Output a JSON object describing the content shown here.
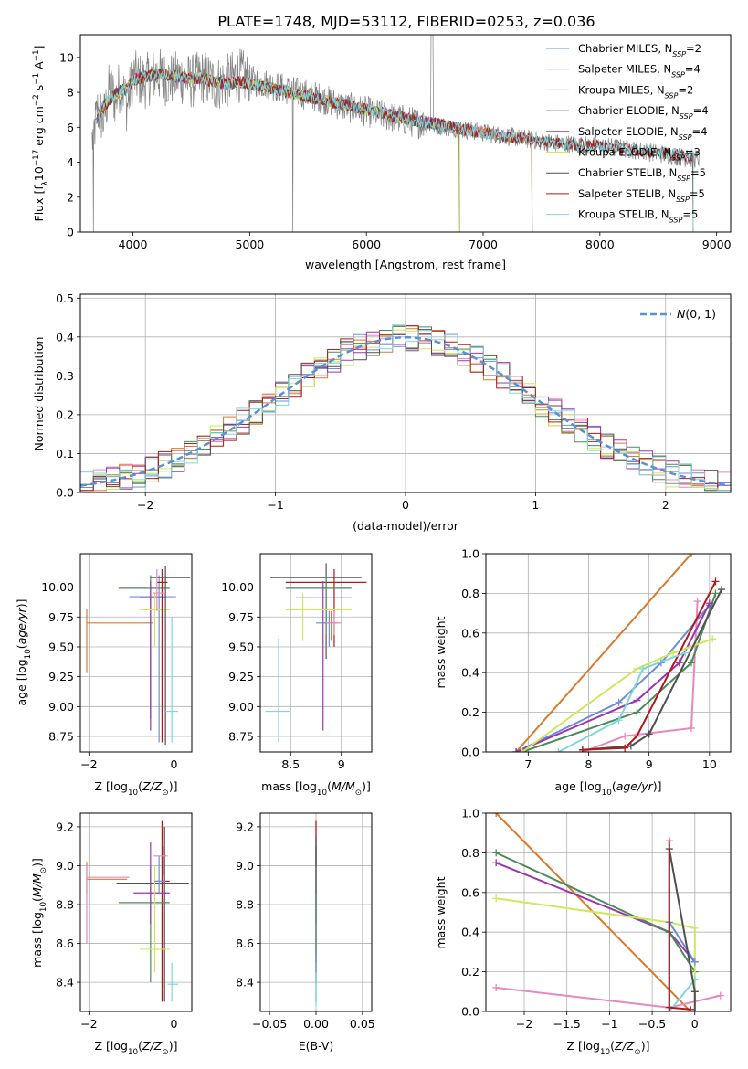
{
  "figure": {
    "title": "PLATE=1748, MJD=53112, FIBERID=0253, z=0.036"
  },
  "chart_data": [
    {
      "id": "spectrum",
      "type": "line",
      "title": "PLATE=1748, MJD=53112, FIBERID=0253, z=0.036",
      "xlabel": "wavelength [Angstrom, rest frame]",
      "ylabel": "Flux [f_λ 10^-17 erg cm^-2 s^-1 A^-1]",
      "xlim": [
        3550,
        9120
      ],
      "ylim": [
        0,
        11.3
      ],
      "xticks": [
        4000,
        5000,
        6000,
        7000,
        8000,
        9000
      ],
      "yticks": [
        0,
        2,
        4,
        6,
        8,
        10
      ],
      "grid": false,
      "legend_position": "top-right",
      "observed": {
        "name": "",
        "color": "#808080",
        "x": [
          3650,
          3700,
          3750,
          3800,
          3850,
          3900,
          3950,
          4000,
          4100,
          4200,
          4300,
          4400,
          4500,
          4600,
          4700,
          4800,
          4900,
          5000,
          5200,
          5400,
          5600,
          5800,
          6000,
          6200,
          6400,
          6600,
          6800,
          7000,
          7200,
          7400,
          7600,
          7800,
          8000,
          8200,
          8400,
          8600,
          8800
        ],
        "y": [
          5.2,
          7.0,
          6.4,
          8.3,
          7.6,
          8.6,
          7.2,
          8.9,
          8.6,
          9.1,
          8.7,
          8.9,
          8.6,
          8.9,
          8.5,
          8.6,
          9.0,
          8.7,
          8.4,
          8.0,
          7.7,
          7.2,
          6.9,
          6.6,
          6.3,
          6.1,
          5.9,
          5.7,
          5.5,
          5.3,
          5.1,
          5.0,
          4.9,
          4.8,
          4.6,
          4.4,
          4.2
        ]
      },
      "model_shape": {
        "x": [
          3650,
          3700,
          3750,
          3800,
          3850,
          3900,
          3950,
          4000,
          4100,
          4200,
          4300,
          4400,
          4500,
          4600,
          4700,
          4800,
          4900,
          5000,
          5200,
          5400,
          5600,
          5800,
          6000,
          6200,
          6400,
          6600,
          6800,
          7000,
          7200,
          7400,
          7600,
          7800,
          8000,
          8200,
          8400,
          8600,
          8800
        ],
        "y": [
          5.6,
          6.6,
          7.2,
          7.6,
          7.9,
          8.1,
          8.2,
          8.7,
          8.9,
          9.0,
          9.0,
          8.9,
          8.8,
          8.8,
          8.6,
          8.5,
          8.6,
          8.5,
          8.2,
          7.9,
          7.6,
          7.3,
          7.0,
          6.7,
          6.4,
          6.2,
          5.9,
          5.7,
          5.5,
          5.3,
          5.1,
          5.0,
          4.9,
          4.8,
          4.6,
          4.5,
          4.3
        ]
      },
      "models": [
        {
          "name": "Chabrier MILES, N_SSP=2",
          "label": "Chabrier MILES, N",
          "sub": "SSP",
          "tail": "=2",
          "color": "#6a8fd8",
          "end": 7420
        },
        {
          "name": "Salpeter MILES, N_SSP=4",
          "label": "Salpeter MILES, N",
          "sub": "SSP",
          "tail": "=4",
          "color": "#e889bd",
          "end": 7420
        },
        {
          "name": "Kroupa MILES, N_SSP=2",
          "label": "Kroupa MILES, N",
          "sub": "SSP",
          "tail": "=2",
          "color": "#d97a2b",
          "end": 7420
        },
        {
          "name": "Chabrier ELODIE, N_SSP=4",
          "label": "Chabrier ELODIE, N",
          "sub": "SSP",
          "tail": "=4",
          "color": "#4d8a5a",
          "end": 6800
        },
        {
          "name": "Salpeter ELODIE, N_SSP=4",
          "label": "Salpeter ELODIE, N",
          "sub": "SSP",
          "tail": "=4",
          "color": "#9b35b0",
          "end": 6800
        },
        {
          "name": "Kroupa ELODIE, N_SSP=3",
          "label": "Kroupa ELODIE, N",
          "sub": "SSP",
          "tail": "=3",
          "color": "#cfe85a",
          "end": 6800
        },
        {
          "name": "Chabrier STELIB, N_SSP=5",
          "label": "Chabrier STELIB, N",
          "sub": "SSP",
          "tail": "=5",
          "color": "#505050",
          "end": 8800
        },
        {
          "name": "Salpeter STELIB, N_SSP=5",
          "label": "Salpeter STELIB, N",
          "sub": "SSP",
          "tail": "=5",
          "color": "#b01919",
          "end": 8800
        },
        {
          "name": "Kroupa STELIB, N_SSP=5",
          "label": "Kroupa STELIB, N",
          "sub": "SSP",
          "tail": "=5",
          "color": "#7fd6dc",
          "end": 8800
        }
      ]
    },
    {
      "id": "residuals",
      "type": "line",
      "title": "",
      "xlabel": "(data-model)/error",
      "ylabel": "Normed distribution",
      "xlim": [
        -2.5,
        2.5
      ],
      "ylim": [
        0,
        0.51
      ],
      "xticks": [
        -2,
        -1,
        0,
        1,
        2
      ],
      "yticks": [
        0.0,
        0.1,
        0.2,
        0.3,
        0.4,
        0.5
      ],
      "grid": true,
      "legend_position": "top-right",
      "reference": {
        "name": "N(0,1)",
        "color": "#5b8fd6",
        "mu": 0,
        "sigma": 1
      },
      "bin_width": 0.1
    },
    {
      "id": "age_vs_Z",
      "type": "scatter",
      "xlabel": "Z [log10(Z/Z_sun)]",
      "ylabel": "age [log10(age/yr)]",
      "xlim": [
        -2.2,
        0.42
      ],
      "ylim": [
        8.62,
        10.28
      ],
      "xticks": [
        -2,
        0
      ],
      "yticks": [
        8.75,
        9.0,
        9.25,
        9.5,
        9.75,
        10.0
      ],
      "grid": true
    },
    {
      "id": "age_vs_mass",
      "type": "scatter",
      "xlabel": "mass [log10(M/M_sun)]",
      "ylabel": "",
      "xlim": [
        8.2,
        9.3
      ],
      "ylim": [
        8.62,
        10.28
      ],
      "xticks": [
        8.5,
        9.0
      ],
      "yticks": [
        8.75,
        9.0,
        9.25,
        9.5,
        9.75,
        10.0
      ],
      "grid": true
    },
    {
      "id": "weight_vs_age",
      "type": "line",
      "xlabel": "age [log10(age/yr)]",
      "ylabel": "mass weight",
      "xlim": [
        6.3,
        10.35
      ],
      "ylim": [
        0,
        1.0
      ],
      "xticks": [
        7,
        8,
        9,
        10
      ],
      "yticks": [
        0.0,
        0.2,
        0.4,
        0.6,
        0.8,
        1.0
      ],
      "grid": true,
      "series": [
        {
          "color": "#d97a2b",
          "x": [
            6.8,
            9.7
          ],
          "y": [
            0.0,
            1.0
          ]
        },
        {
          "color": "#e889bd",
          "x": [
            7.9,
            8.6,
            9.7,
            9.8
          ],
          "y": [
            0.0,
            0.08,
            0.12,
            0.76
          ]
        },
        {
          "color": "#6a8fd8",
          "x": [
            6.8,
            8.5,
            9.2,
            10.0
          ],
          "y": [
            0.0,
            0.25,
            0.45,
            0.74
          ]
        },
        {
          "color": "#4d8a5a",
          "x": [
            6.9,
            8.8,
            9.7,
            10.1
          ],
          "y": [
            0.0,
            0.2,
            0.45,
            0.8
          ]
        },
        {
          "color": "#9b35b0",
          "x": [
            6.8,
            8.8,
            9.5,
            10.0
          ],
          "y": [
            0.0,
            0.26,
            0.45,
            0.75
          ]
        },
        {
          "color": "#cfe85a",
          "x": [
            6.9,
            8.8,
            9.4,
            10.05
          ],
          "y": [
            0.0,
            0.42,
            0.5,
            0.57
          ]
        },
        {
          "color": "#505050",
          "x": [
            7.9,
            8.7,
            9.0,
            10.2
          ],
          "y": [
            0.01,
            0.03,
            0.09,
            0.82
          ]
        },
        {
          "color": "#b01919",
          "x": [
            7.9,
            8.6,
            8.8,
            10.1
          ],
          "y": [
            0.01,
            0.02,
            0.08,
            0.86
          ]
        },
        {
          "color": "#7fd6dc",
          "x": [
            7.5,
            8.5,
            8.9,
            9.6
          ],
          "y": [
            0.0,
            0.16,
            0.42,
            0.5
          ]
        }
      ]
    },
    {
      "id": "mass_vs_Z",
      "type": "scatter",
      "xlabel": "Z [log10(Z/Z_sun)]",
      "ylabel": "mass [log10(M/M_sun)]",
      "xlim": [
        -2.2,
        0.42
      ],
      "ylim": [
        8.25,
        9.27
      ],
      "xticks": [
        -2,
        0
      ],
      "yticks": [
        8.4,
        8.6,
        8.8,
        9.0,
        9.2
      ],
      "grid": true
    },
    {
      "id": "mass_vs_ebv",
      "type": "scatter",
      "xlabel": "E(B-V)",
      "ylabel": "",
      "xlim": [
        -0.06,
        0.06
      ],
      "ylim": [
        8.25,
        9.27
      ],
      "xticks": [
        -0.05,
        0.0,
        0.05
      ],
      "xticklabels": [
        "−0.05",
        "0.00",
        "0.05"
      ],
      "yticks": [
        8.4,
        8.6,
        8.8,
        9.0,
        9.2
      ],
      "grid": true
    },
    {
      "id": "weight_vs_Z",
      "type": "line",
      "xlabel": "Z [log10(Z/Z_sun)]",
      "ylabel": "mass weight",
      "xlim": [
        -2.45,
        0.42
      ],
      "ylim": [
        0,
        1.0
      ],
      "xticks": [
        -2.0,
        -1.5,
        -1.0,
        -0.5,
        0.0
      ],
      "yticks": [
        0.0,
        0.2,
        0.4,
        0.6,
        0.8,
        1.0
      ],
      "grid": true,
      "series": [
        {
          "color": "#d97a2b",
          "x": [
            -2.33,
            -0.05
          ],
          "y": [
            1.0,
            0.0
          ]
        },
        {
          "color": "#e889bd",
          "x": [
            -2.33,
            -0.3,
            0.3
          ],
          "y": [
            0.12,
            0.02,
            0.08
          ]
        },
        {
          "color": "#9b35b0",
          "x": [
            -2.33,
            -0.3,
            0.0
          ],
          "y": [
            0.75,
            0.4,
            0.25
          ]
        },
        {
          "color": "#4d8a5a",
          "x": [
            -2.33,
            -0.3,
            0.0
          ],
          "y": [
            0.8,
            0.4,
            0.2
          ]
        },
        {
          "color": "#cfe85a",
          "x": [
            -2.33,
            -0.3,
            0.0,
            0.0
          ],
          "y": [
            0.57,
            0.45,
            0.42,
            0.0
          ]
        },
        {
          "color": "#7fd6dc",
          "x": [
            -0.3,
            -0.3,
            0.0
          ],
          "y": [
            0.45,
            0.0,
            0.16
          ]
        },
        {
          "color": "#6a8fd8",
          "x": [
            -0.3,
            0.0
          ],
          "y": [
            0.45,
            0.25
          ]
        },
        {
          "color": "#505050",
          "x": [
            -0.3,
            -0.3,
            0.0,
            0.0
          ],
          "y": [
            0.0,
            0.82,
            0.1,
            0.0
          ]
        },
        {
          "color": "#b01919",
          "x": [
            -0.3,
            -0.3,
            -0.3,
            -0.05
          ],
          "y": [
            0.0,
            0.86,
            0.02,
            0.01
          ]
        }
      ]
    }
  ]
}
